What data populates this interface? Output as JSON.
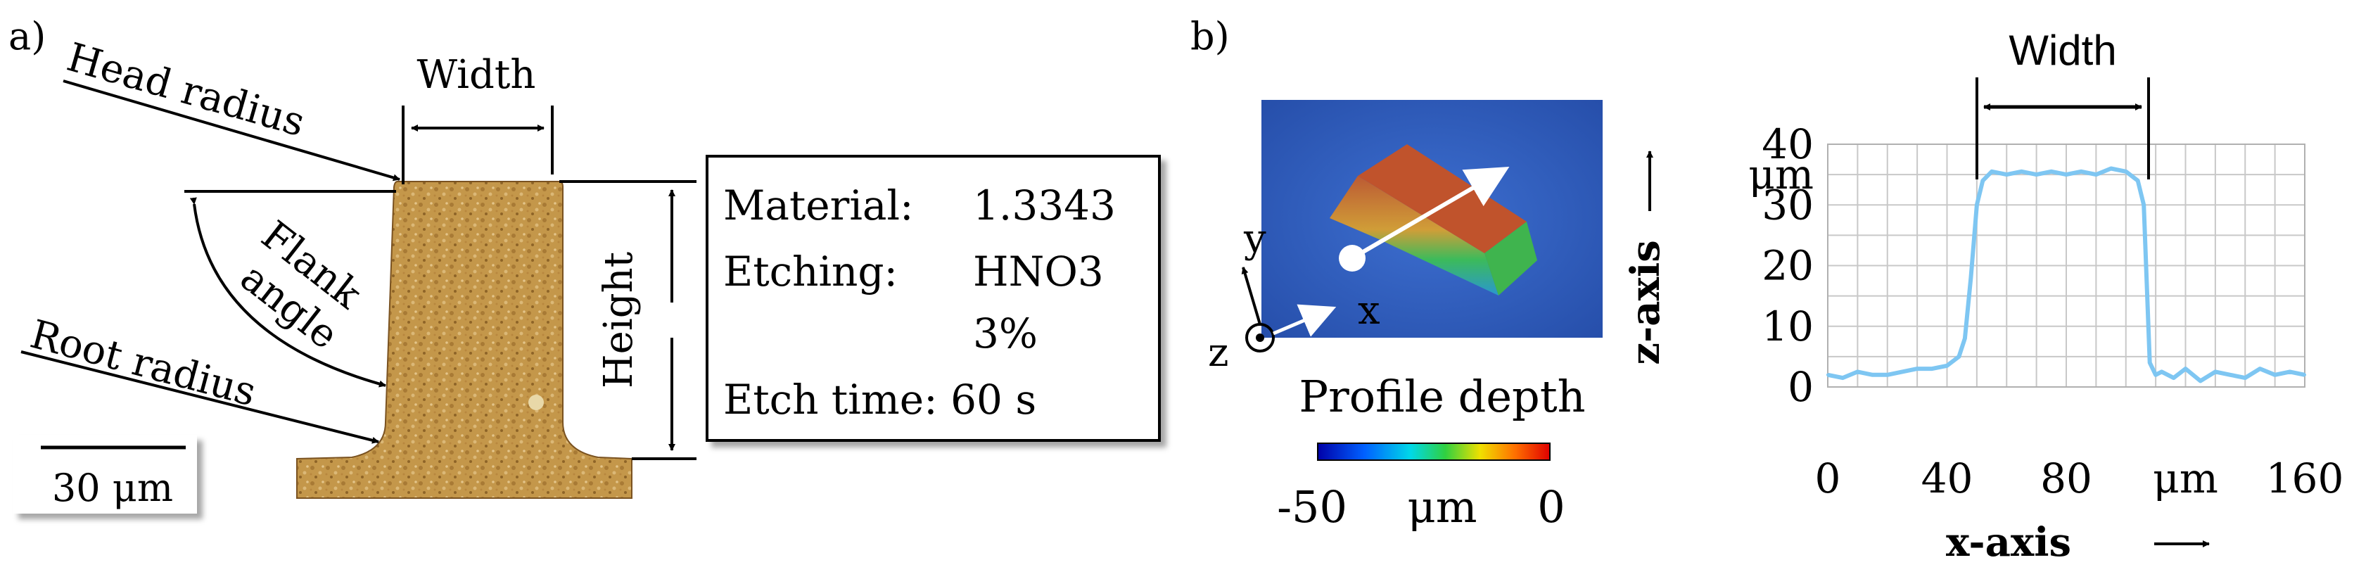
{
  "panel_a": {
    "label": "a)",
    "head_radius": "Head radius",
    "width": "Width",
    "flank_line1": "Flank",
    "flank_line2": "angle",
    "root_radius": "Root radius",
    "height": "Height",
    "scale_bar": "30 μm",
    "info": {
      "material_key": "Material:",
      "material_val": "1.3343",
      "etching_key": "Etching:",
      "etching_val1": "HNO3",
      "etching_val2": "3%",
      "etch_time": "Etch time: 60 s"
    }
  },
  "panel_b": {
    "label": "b)",
    "axis_y": "y",
    "axis_x": "x",
    "axis_z": "z",
    "profile_depth": "Profile depth",
    "colorbar_min": "-50",
    "colorbar_unit": "μm",
    "colorbar_max": "0",
    "colors": {
      "surface_blue": "#2a57b8",
      "ridge_red": "#c8502a",
      "profile_line": "#7ec6f2"
    }
  },
  "chart_data": {
    "type": "line",
    "title": "Width",
    "xlabel": "x-axis",
    "ylabel": "z-axis",
    "x_unit": "μm",
    "y_unit": "μm",
    "xlim": [
      0,
      160
    ],
    "ylim": [
      0,
      40
    ],
    "x_ticks": [
      "0",
      "40",
      "80",
      "μm",
      "160"
    ],
    "y_ticks": [
      "40",
      "μm",
      "30",
      "20",
      "10",
      "0"
    ],
    "grid": true,
    "series": [
      {
        "color": "#7ec6f2",
        "x": [
          0,
          5,
          10,
          15,
          20,
          25,
          30,
          35,
          40,
          44,
          46,
          48,
          50,
          52,
          55,
          60,
          65,
          70,
          75,
          80,
          85,
          90,
          95,
          100,
          104,
          106,
          108,
          110,
          112,
          116,
          120,
          125,
          130,
          135,
          140,
          145,
          150,
          155,
          160
        ],
        "y": [
          2,
          1.5,
          2.5,
          2,
          2,
          2.5,
          3,
          3,
          3.5,
          5,
          8,
          18,
          30,
          34,
          35.5,
          35,
          35.5,
          35,
          35.5,
          35,
          35.5,
          35,
          36,
          35.5,
          34,
          30,
          4,
          2,
          2.5,
          1.5,
          3,
          1,
          2.5,
          2,
          1.5,
          3,
          2,
          2.5,
          2
        ]
      }
    ]
  }
}
